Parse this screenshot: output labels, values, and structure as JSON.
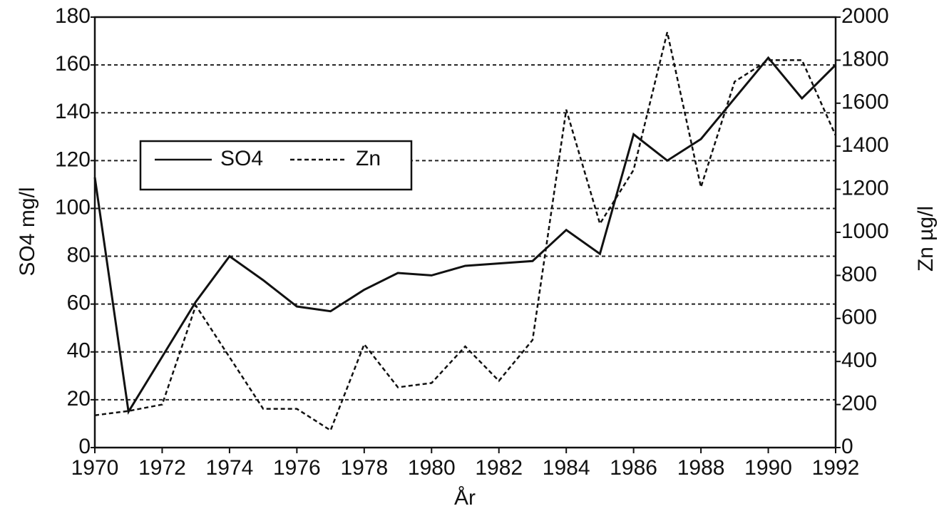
{
  "chart_data": {
    "type": "line",
    "x_label": "År",
    "y_label": "SO4  mg/l",
    "y2_label": "Zn  µg/l",
    "x": [
      1970,
      1971,
      1972,
      1973,
      1974,
      1975,
      1976,
      1977,
      1978,
      1979,
      1980,
      1981,
      1982,
      1983,
      1984,
      1985,
      1986,
      1987,
      1988,
      1989,
      1990,
      1991,
      1992
    ],
    "xlim": [
      1970,
      1992
    ],
    "xticks": [
      1970,
      1972,
      1974,
      1976,
      1978,
      1980,
      1982,
      1984,
      1986,
      1988,
      1990,
      1992
    ],
    "ylim": [
      0,
      180
    ],
    "yticks": [
      0,
      20,
      40,
      60,
      80,
      100,
      120,
      140,
      160,
      180
    ],
    "y2lim": [
      0,
      2000
    ],
    "y2ticks": [
      0,
      200,
      400,
      600,
      800,
      1000,
      1200,
      1400,
      1600,
      1800,
      2000
    ],
    "grid": true,
    "legend": "upper left",
    "series": [
      {
        "name": "SO4",
        "color": "#111111",
        "line_style": "solid",
        "values": [
          113,
          15,
          38,
          61,
          80,
          70,
          59,
          57,
          66,
          73,
          72,
          76,
          77,
          78,
          91,
          81,
          131,
          120,
          129,
          146,
          163,
          146,
          160
        ]
      },
      {
        "name": "Zn",
        "color": "#111111",
        "line_style": "dashed",
        "axis": "y2",
        "values": [
          150,
          170,
          200,
          660,
          420,
          180,
          180,
          80,
          480,
          280,
          300,
          470,
          310,
          500,
          1570,
          1040,
          1290,
          1930,
          1210,
          1700,
          1800,
          1800,
          1450
        ]
      }
    ]
  }
}
